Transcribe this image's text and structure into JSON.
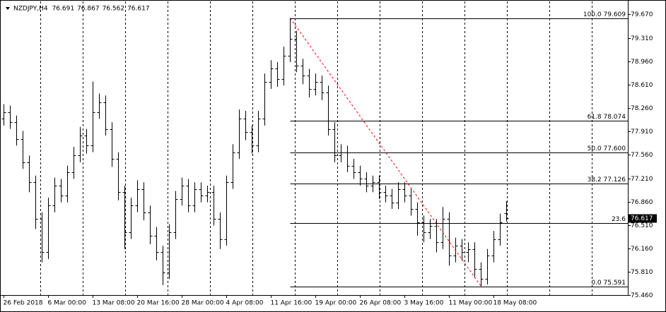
{
  "chart_data": {
    "type": "ohlc",
    "symbol": "NZDJPY,H4",
    "ohlc_header": [
      76.691,
      76.867,
      76.562,
      76.617
    ],
    "current_price": 76.617,
    "grid": true,
    "color": "#000000",
    "ylim": [
      75.46,
      79.86
    ],
    "yticks": [
      {
        "value": 79.67,
        "label": "79.670"
      },
      {
        "value": 79.31,
        "label": "79.310"
      },
      {
        "value": 78.96,
        "label": "78.960"
      },
      {
        "value": 78.61,
        "label": "78.610"
      },
      {
        "value": 78.26,
        "label": "78.260"
      },
      {
        "value": 77.91,
        "label": "77.910"
      },
      {
        "value": 77.56,
        "label": "77.560"
      },
      {
        "value": 77.21,
        "label": "77.210"
      },
      {
        "value": 76.86,
        "label": "76.860"
      },
      {
        "value": 76.51,
        "label": "76.510"
      },
      {
        "value": 76.16,
        "label": "76.160"
      },
      {
        "value": 75.81,
        "label": "75.810"
      },
      {
        "value": 75.46,
        "label": "75.460"
      }
    ],
    "categories": [
      "26 Feb 2018",
      null,
      null,
      null,
      null,
      null,
      null,
      "6 Mar 00:00",
      null,
      null,
      null,
      null,
      null,
      null,
      "13 Mar 08:00",
      null,
      null,
      null,
      null,
      null,
      null,
      "20 Mar 16:00",
      null,
      null,
      null,
      null,
      null,
      null,
      "28 Mar 00:00",
      null,
      null,
      null,
      null,
      null,
      null,
      "4 Apr 08:00",
      null,
      null,
      null,
      null,
      null,
      null,
      "11 Apr 16:00",
      null,
      null,
      null,
      null,
      null,
      null,
      "19 Apr 00:00",
      null,
      null,
      null,
      null,
      null,
      null,
      "26 Apr 08:00",
      null,
      null,
      null,
      null,
      null,
      null,
      "3 May 16:00",
      null,
      null,
      null,
      null,
      null,
      null,
      "11 May 00:00",
      null,
      null,
      null,
      null,
      null,
      null,
      "18 May 08:00",
      null,
      null
    ],
    "open": [
      78.1,
      78.2,
      78.05,
      77.8,
      77.45,
      77.15,
      76.6,
      76.1,
      76.8,
      77.1,
      76.95,
      77.3,
      77.55,
      77.85,
      77.7,
      78.2,
      78.35,
      77.95,
      77.5,
      77.0,
      76.4,
      76.8,
      77.05,
      76.7,
      76.35,
      76.1,
      75.8,
      76.4,
      76.9,
      77.1,
      76.8,
      77.05,
      76.95,
      77.0,
      76.6,
      76.3,
      77.15,
      77.6,
      78.1,
      77.9,
      77.7,
      78.1,
      78.65,
      78.85,
      78.7,
      79.05,
      79.3,
      78.9,
      78.75,
      78.55,
      78.65,
      78.5,
      77.95,
      77.55,
      77.6,
      77.4,
      77.3,
      77.2,
      77.1,
      77.15,
      77.0,
      76.95,
      76.85,
      77.05,
      76.95,
      76.75,
      76.55,
      76.4,
      76.5,
      76.25,
      76.6,
      76.05,
      76.2,
      76.1,
      76.15,
      75.85,
      75.7,
      76.05,
      76.3,
      76.691
    ],
    "high": [
      78.32,
      78.3,
      78.15,
      77.92,
      77.55,
      77.25,
      76.7,
      76.92,
      77.22,
      77.2,
      77.4,
      77.68,
      77.98,
      77.95,
      78.66,
      78.48,
      78.45,
      78.05,
      77.6,
      77.1,
      76.92,
      77.18,
      77.15,
      76.8,
      76.48,
      76.2,
      76.52,
      77.02,
      77.22,
      77.2,
      77.15,
      77.15,
      77.1,
      77.1,
      76.7,
      77.25,
      77.72,
      78.24,
      78.22,
      78.0,
      78.22,
      78.78,
      78.98,
      78.95,
      79.18,
      79.609,
      79.42,
      79.0,
      78.85,
      78.78,
      78.75,
      78.6,
      78.05,
      77.72,
      77.7,
      77.5,
      77.4,
      77.3,
      77.25,
      77.25,
      77.1,
      77.05,
      77.15,
      77.15,
      77.05,
      76.85,
      76.65,
      76.6,
      76.6,
      76.78,
      76.7,
      76.32,
      76.3,
      76.25,
      76.25,
      75.95,
      76.15,
      76.42,
      76.68,
      76.867
    ],
    "low": [
      78.0,
      77.95,
      77.7,
      77.35,
      77.0,
      76.45,
      75.95,
      76.0,
      76.7,
      76.85,
      76.85,
      77.2,
      77.45,
      77.58,
      77.6,
      78.1,
      77.85,
      77.38,
      76.88,
      76.15,
      76.3,
      76.7,
      76.58,
      76.22,
      75.98,
      75.61,
      75.7,
      76.3,
      76.8,
      76.7,
      76.7,
      76.85,
      76.85,
      76.5,
      76.15,
      76.2,
      77.05,
      77.5,
      77.78,
      77.58,
      77.6,
      78.0,
      78.55,
      78.58,
      78.6,
      78.95,
      78.8,
      78.62,
      78.42,
      78.45,
      78.38,
      77.85,
      77.45,
      77.45,
      77.3,
      77.2,
      77.1,
      77.0,
      77.0,
      76.9,
      76.85,
      76.75,
      76.75,
      76.85,
      76.65,
      76.35,
      76.25,
      76.3,
      76.1,
      76.15,
      75.9,
      75.95,
      75.98,
      75.95,
      75.72,
      75.591,
      75.62,
      75.95,
      76.2,
      76.562
    ],
    "close": [
      78.2,
      78.05,
      77.8,
      77.45,
      77.15,
      76.6,
      76.1,
      76.8,
      77.1,
      76.95,
      77.3,
      77.55,
      77.85,
      77.7,
      78.2,
      78.35,
      77.95,
      77.5,
      77.0,
      76.4,
      76.8,
      77.05,
      76.7,
      76.35,
      76.1,
      75.8,
      76.4,
      76.9,
      77.1,
      76.8,
      77.05,
      76.95,
      77.0,
      76.6,
      76.3,
      77.15,
      77.6,
      78.1,
      77.9,
      77.7,
      78.1,
      78.65,
      78.85,
      78.7,
      79.05,
      79.3,
      78.9,
      78.75,
      78.55,
      78.65,
      78.5,
      77.95,
      77.55,
      77.6,
      77.4,
      77.3,
      77.2,
      77.1,
      77.15,
      77.0,
      76.95,
      76.85,
      77.05,
      76.95,
      76.75,
      76.55,
      76.4,
      76.5,
      76.25,
      76.6,
      76.05,
      76.2,
      76.1,
      76.15,
      75.85,
      75.7,
      76.05,
      76.3,
      76.55,
      76.617
    ],
    "fibonacci": {
      "color": "#ff0000",
      "levels": [
        {
          "label": "100.0 79.609",
          "value": 79.609
        },
        {
          "label": "61.8 78.074",
          "value": 78.074
        },
        {
          "label": "50.0 77.600",
          "value": 77.6
        },
        {
          "label": "38.2 77.126",
          "value": 77.126
        },
        {
          "label": "23.6",
          "value": 76.539
        },
        {
          "label": "0.0 75.591",
          "value": 75.591
        }
      ]
    }
  }
}
